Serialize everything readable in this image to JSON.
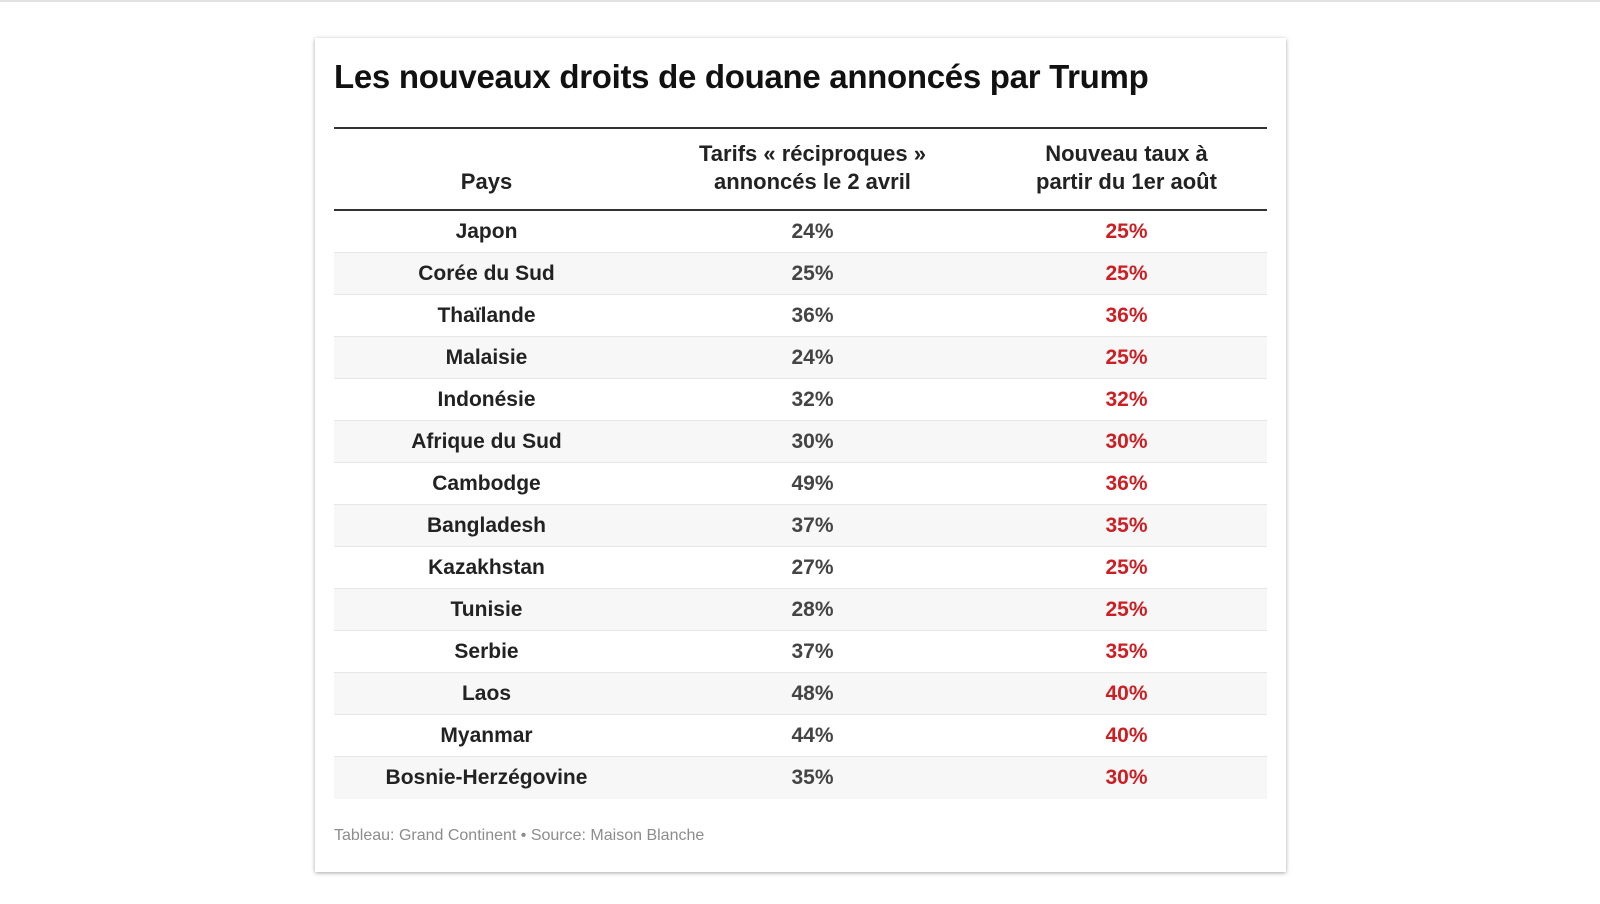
{
  "chart_data": {
    "type": "table",
    "title": "Les nouveaux droits de douane annoncés par Trump",
    "columns": [
      "Pays",
      "Tarifs « réciproques »\nannoncés le 2 avril",
      "Nouveau taux à\npartir du 1er août"
    ],
    "rows": [
      {
        "country": "Japon",
        "april": "24%",
        "august": "25%"
      },
      {
        "country": "Corée du Sud",
        "april": "25%",
        "august": "25%"
      },
      {
        "country": "Thaïlande",
        "april": "36%",
        "august": "36%"
      },
      {
        "country": "Malaisie",
        "april": "24%",
        "august": "25%"
      },
      {
        "country": "Indonésie",
        "april": "32%",
        "august": "32%"
      },
      {
        "country": "Afrique du Sud",
        "april": "30%",
        "august": "30%"
      },
      {
        "country": "Cambodge",
        "april": "49%",
        "august": "36%"
      },
      {
        "country": "Bangladesh",
        "april": "37%",
        "august": "35%"
      },
      {
        "country": "Kazakhstan",
        "april": "27%",
        "august": "25%"
      },
      {
        "country": "Tunisie",
        "april": "28%",
        "august": "25%"
      },
      {
        "country": "Serbie",
        "april": "37%",
        "august": "35%"
      },
      {
        "country": "Laos",
        "april": "48%",
        "august": "40%"
      },
      {
        "country": "Myanmar",
        "april": "44%",
        "august": "40%"
      },
      {
        "country": "Bosnie-Herzégovine",
        "april": "35%",
        "august": "30%"
      }
    ],
    "highlight_color": "#cc1f24",
    "footer": "Tableau: Grand Continent • Source: Maison Blanche"
  }
}
